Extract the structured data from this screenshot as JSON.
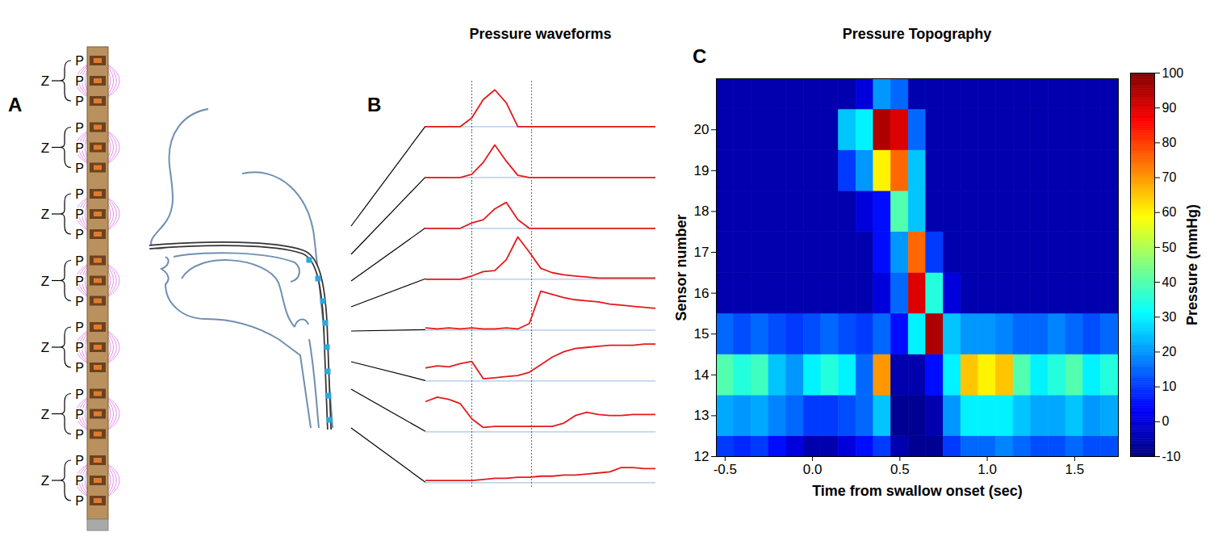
{
  "diagram": {
    "panel": "A",
    "segments": [
      {
        "label": "Z",
        "sensors": [
          "P",
          "P",
          "P"
        ]
      },
      {
        "label": "Z",
        "sensors": [
          "P",
          "P",
          "P"
        ]
      },
      {
        "label": "Z",
        "sensors": [
          "P",
          "P",
          "P"
        ]
      },
      {
        "label": "Z",
        "sensors": [
          "P",
          "P",
          "P"
        ]
      },
      {
        "label": "Z",
        "sensors": [
          "P",
          "P",
          "P"
        ]
      },
      {
        "label": "Z",
        "sensors": [
          "P",
          "P",
          "P"
        ]
      },
      {
        "label": "Z",
        "sensors": [
          "P",
          "P",
          "P"
        ]
      }
    ]
  },
  "chart_data": [
    {
      "type": "line",
      "panel": "B",
      "title": "Pressure waveforms",
      "tick_labels": false,
      "x": [
        0,
        0.5,
        1,
        1.5,
        2,
        2.5,
        3,
        3.5,
        4,
        4.5,
        5,
        5.5,
        6,
        6.5,
        7,
        7.5,
        8,
        8.5,
        9,
        9.5,
        10
      ],
      "xlim": [
        0,
        10
      ],
      "ylim": [
        -5,
        42
      ],
      "vertical_lines": [
        2,
        4.6
      ],
      "series": [
        {
          "color": "#e31a1c",
          "values": [
            0,
            0,
            0,
            0,
            8,
            25,
            34,
            22,
            0,
            0,
            0,
            0,
            0,
            0,
            0,
            0,
            0,
            0,
            0,
            0,
            0
          ]
        },
        {
          "color": "#e31a1c",
          "values": [
            0,
            0,
            0,
            0,
            3,
            14,
            30,
            15,
            2,
            0,
            0,
            0,
            0,
            0,
            0,
            0,
            0,
            0,
            0,
            0,
            0
          ]
        },
        {
          "color": "#e31a1c",
          "values": [
            0,
            0,
            0,
            0,
            5,
            8,
            18,
            24,
            8,
            0,
            0,
            0,
            0,
            0,
            0,
            0,
            0,
            0,
            0,
            0,
            0
          ]
        },
        {
          "color": "#e31a1c",
          "values": [
            0,
            0,
            0,
            0,
            3,
            7,
            8,
            18,
            39,
            25,
            10,
            6,
            4,
            3,
            2,
            1,
            1,
            1,
            1,
            1,
            1
          ]
        },
        {
          "color": "#e31a1c",
          "values": [
            2,
            1,
            2,
            1,
            2,
            1,
            1,
            2,
            1,
            6,
            36,
            33,
            30,
            28,
            27,
            26,
            24,
            23,
            22,
            21,
            20
          ]
        },
        {
          "color": "#e31a1c",
          "values": [
            12,
            14,
            13,
            16,
            18,
            2,
            3,
            4,
            5,
            8,
            15,
            22,
            27,
            30,
            31,
            32,
            33,
            33,
            33,
            34,
            34
          ]
        },
        {
          "color": "#e31a1c",
          "values": [
            28,
            32,
            30,
            26,
            12,
            4,
            5,
            5,
            5,
            5,
            5,
            5,
            8,
            15,
            18,
            16,
            15,
            15,
            16,
            16,
            16
          ]
        },
        {
          "color": "#e31a1c",
          "values": [
            2,
            2,
            2,
            2,
            2,
            3,
            4,
            4,
            5,
            5,
            6,
            6,
            7,
            7,
            8,
            9,
            10,
            14,
            14,
            13,
            13
          ]
        }
      ]
    },
    {
      "type": "heatmap",
      "panel": "C",
      "title": "Pressure Topography",
      "xlabel": "Time from swallow onset (sec)",
      "ylabel": "Sensor number",
      "x": [
        -0.5,
        -0.4,
        -0.3,
        -0.2,
        -0.1,
        0,
        0.1,
        0.2,
        0.3,
        0.4,
        0.5,
        0.6,
        0.7,
        0.8,
        0.9,
        1,
        1.1,
        1.2,
        1.3,
        1.4,
        1.5,
        1.6,
        1.7
      ],
      "y": [
        12,
        13,
        14,
        15,
        16,
        17,
        18,
        19,
        20,
        21
      ],
      "xlim": [
        -0.55,
        1.75
      ],
      "xticks": [
        -0.5,
        {
          "value": 0,
          "label": "0.0"
        },
        0.5,
        {
          "value": 1,
          "label": "1.0"
        },
        1.5
      ],
      "ylim": [
        12,
        21.25
      ],
      "yticks": [
        12,
        13,
        14,
        15,
        16,
        17,
        18,
        19,
        20
      ],
      "cells": [
        [
          10,
          8,
          10,
          5,
          0,
          -5,
          -5,
          0,
          5,
          10,
          -5,
          -8,
          -8,
          10,
          15,
          15,
          18,
          15,
          12,
          12,
          15,
          12,
          12
        ],
        [
          22,
          20,
          22,
          18,
          15,
          10,
          10,
          12,
          15,
          25,
          -8,
          -8,
          -5,
          20,
          30,
          30,
          30,
          25,
          22,
          22,
          25,
          20,
          22
        ],
        [
          40,
          35,
          38,
          25,
          20,
          30,
          35,
          30,
          15,
          70,
          -5,
          -5,
          5,
          30,
          65,
          60,
          65,
          40,
          30,
          35,
          40,
          30,
          35
        ],
        [
          15,
          12,
          15,
          12,
          10,
          12,
          15,
          12,
          10,
          15,
          5,
          30,
          95,
          25,
          20,
          20,
          18,
          15,
          15,
          18,
          15,
          12,
          15
        ],
        [
          -5,
          -5,
          -5,
          -5,
          -5,
          -5,
          -5,
          -5,
          -5,
          0,
          15,
          90,
          35,
          0,
          -5,
          -5,
          -5,
          -5,
          -5,
          -5,
          -5,
          -5,
          -5
        ],
        [
          -5,
          -5,
          -5,
          -5,
          -5,
          -5,
          -5,
          -5,
          -5,
          5,
          20,
          75,
          10,
          -5,
          -5,
          -5,
          -5,
          -5,
          -5,
          -5,
          -5,
          -5,
          -5
        ],
        [
          -5,
          -5,
          -5,
          -5,
          -5,
          -5,
          -5,
          -5,
          0,
          5,
          40,
          25,
          -5,
          -5,
          -5,
          -5,
          -5,
          -5,
          -5,
          -5,
          -5,
          -5,
          -5
        ],
        [
          -5,
          -5,
          -5,
          -5,
          -5,
          -5,
          -5,
          10,
          20,
          60,
          75,
          25,
          -5,
          -5,
          -5,
          -5,
          -5,
          -5,
          -5,
          -5,
          -5,
          -5,
          -5
        ],
        [
          -5,
          -5,
          -5,
          -5,
          -5,
          -5,
          -5,
          25,
          30,
          95,
          90,
          15,
          -5,
          -5,
          -5,
          -5,
          -5,
          -5,
          -5,
          -5,
          -5,
          -5,
          -5
        ],
        [
          -5,
          -5,
          -5,
          -5,
          -5,
          -5,
          -5,
          -5,
          0,
          20,
          15,
          -5,
          -5,
          -5,
          -5,
          -5,
          -5,
          -5,
          -5,
          -5,
          -5,
          -5,
          -5
        ]
      ],
      "colorbar": {
        "label": "Pressure (mmHg)",
        "lim": [
          -10,
          100
        ],
        "ticks": [
          -10,
          0,
          10,
          20,
          30,
          40,
          50,
          60,
          70,
          80,
          90,
          100
        ]
      }
    }
  ]
}
